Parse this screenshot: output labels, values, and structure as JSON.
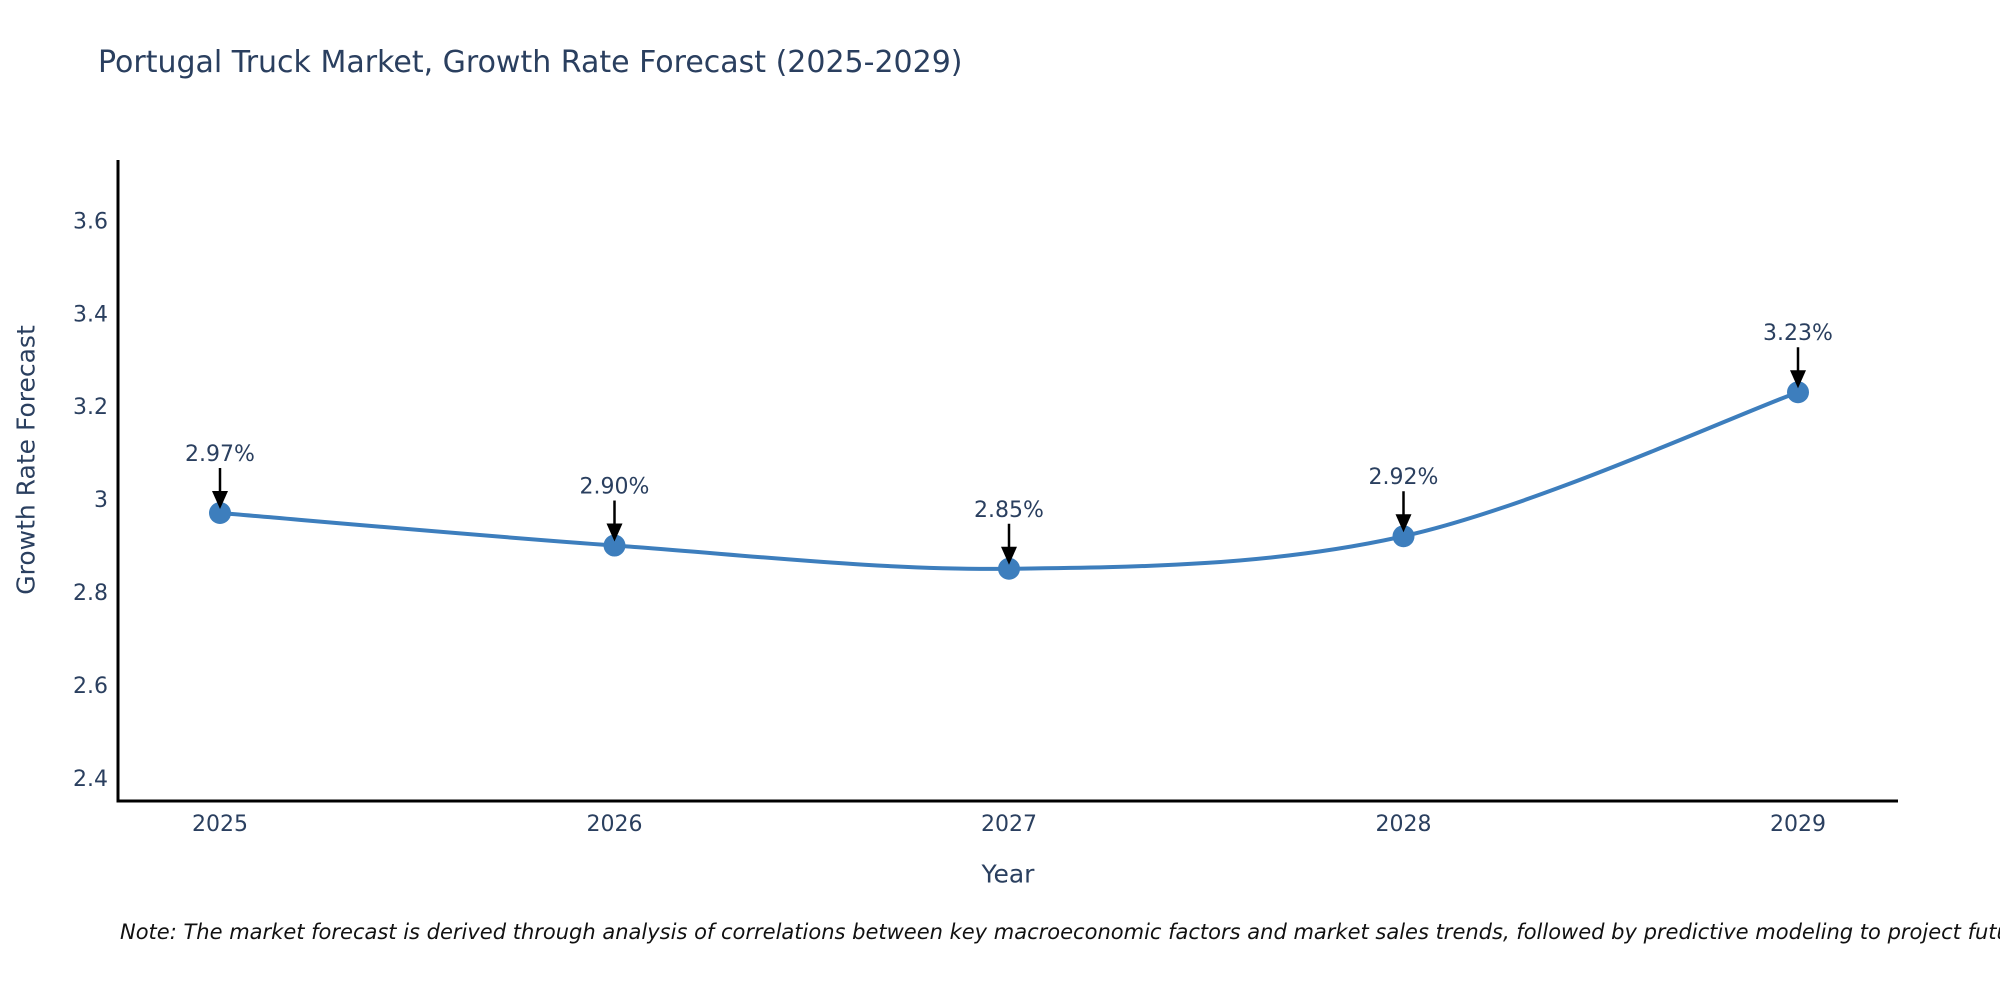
{
  "title": "Portugal Truck Market, Growth Rate Forecast (2025-2029)",
  "footnote": "Note: The market forecast is derived through analysis of correlations between key macroeconomic factors and market sales trends, followed by predictive modeling to project future sales",
  "chart_data": {
    "type": "line",
    "title": "Portugal Truck Market, Growth Rate Forecast (2025-2029)",
    "xlabel": "Year",
    "ylabel": "Growth Rate Forecast",
    "categories": [
      "2025",
      "2026",
      "2027",
      "2028",
      "2029"
    ],
    "values": [
      2.97,
      2.9,
      2.85,
      2.92,
      3.23
    ],
    "point_labels": [
      "2.97%",
      "2.90%",
      "2.85%",
      "2.92%",
      "3.23%"
    ],
    "ytick_labels": [
      "2.4",
      "2.6",
      "2.8",
      "3",
      "3.2",
      "3.4",
      "3.6"
    ],
    "ytick_values": [
      2.4,
      2.6,
      2.8,
      3.0,
      3.2,
      3.4,
      3.6
    ],
    "ylim": [
      2.35,
      3.73
    ],
    "line_shape": "spline",
    "grid": false,
    "legend": "none",
    "colors": {
      "line": "#3d7ebd",
      "marker": "#3d7ebd",
      "text": "#2a3f5f",
      "axis": "#000000",
      "arrow": "#000000",
      "background": "#ffffff"
    }
  }
}
